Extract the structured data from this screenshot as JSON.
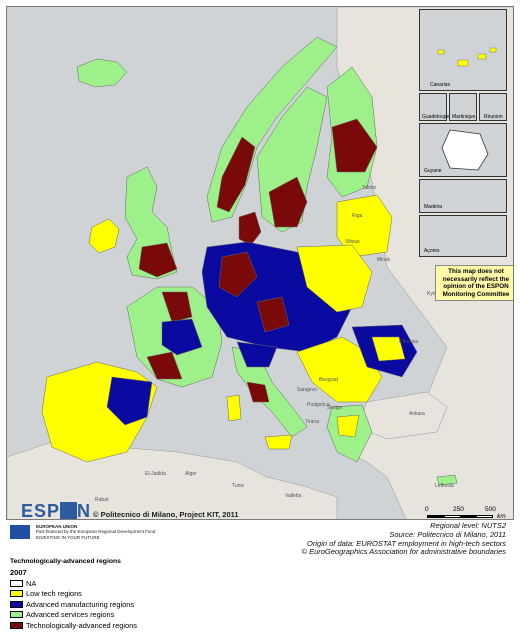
{
  "colors": {
    "sea": "#cfd3d6",
    "non_espon_land": "#e6e4dc",
    "na": "#ffffff",
    "low_tech": "#ffff00",
    "adv_manufacturing": "#0a0aa0",
    "adv_services": "#9ef08a",
    "tech_advanced": "#7a0a0a",
    "border": "#666666"
  },
  "insets": {
    "canarias": "Canarias",
    "guadeloupe": "Guadeloupe",
    "martinique": "Martinique",
    "reunion": "Réunion",
    "guyane": "Guyane",
    "madeira": "Madeira",
    "acores": "Açores"
  },
  "disclaimer": "This map does not necessarily reflect the opinion of the ESPON Monitoring Committee",
  "cities": [
    {
      "id": "kyiv",
      "name": "Kyiv"
    },
    {
      "id": "minsk",
      "name": "Minsk"
    },
    {
      "id": "vilnius",
      "name": "Vilnius"
    },
    {
      "id": "riga",
      "name": "Riga"
    },
    {
      "id": "tallinn",
      "name": "Tallinn"
    },
    {
      "id": "chisinau",
      "name": "Chisinau"
    },
    {
      "id": "beograd",
      "name": "Beograd"
    },
    {
      "id": "skopje",
      "name": "Skopje"
    },
    {
      "id": "tirana",
      "name": "Tirana"
    },
    {
      "id": "sarajevo",
      "name": "Sarajevo"
    },
    {
      "id": "podgorica",
      "name": "Podgorica"
    },
    {
      "id": "ankara",
      "name": "Ankara"
    },
    {
      "id": "lefkosia",
      "name": "Lefkosia"
    },
    {
      "id": "valletta",
      "name": "Valletta"
    },
    {
      "id": "el_jadida",
      "name": "El-Jadida"
    },
    {
      "id": "rabat",
      "name": "Rabat"
    },
    {
      "id": "alger",
      "name": "Alger"
    },
    {
      "id": "tunis",
      "name": "Tunis"
    }
  ],
  "branding": {
    "logo_text_pre": "ESP",
    "logo_text_post": "N",
    "copyright": "© Politecnico di Milano, Project KIT, 2011"
  },
  "scale": {
    "labels": [
      "0",
      "250",
      "500"
    ],
    "unit": "km"
  },
  "eu": {
    "line1": "EUROPEAN UNION",
    "line2": "Part-financed by the European Regional Development Fund",
    "line3": "INVESTING IN YOUR FUTURE"
  },
  "source": {
    "line1": "Regional level: NUTS2",
    "line2": "Source: Politecnico di Milano, 2011",
    "line3": "Origin of data: EUROSTAT employment in high-tech sectors",
    "line4": "© EuroGeographics Association for administrative boundaries"
  },
  "legend": {
    "title": "Technologically-advanced regions",
    "year": "2007",
    "items": [
      {
        "label": "NA",
        "color": "#ffffff"
      },
      {
        "label": "Low tech regions",
        "color": "#ffff00"
      },
      {
        "label": "Advanced manufacturing regions",
        "color": "#0a0aa0"
      },
      {
        "label": "Advanced services regions",
        "color": "#9ef08a"
      },
      {
        "label": "Technologically-advanced regions",
        "color": "#7a0a0a"
      }
    ]
  }
}
